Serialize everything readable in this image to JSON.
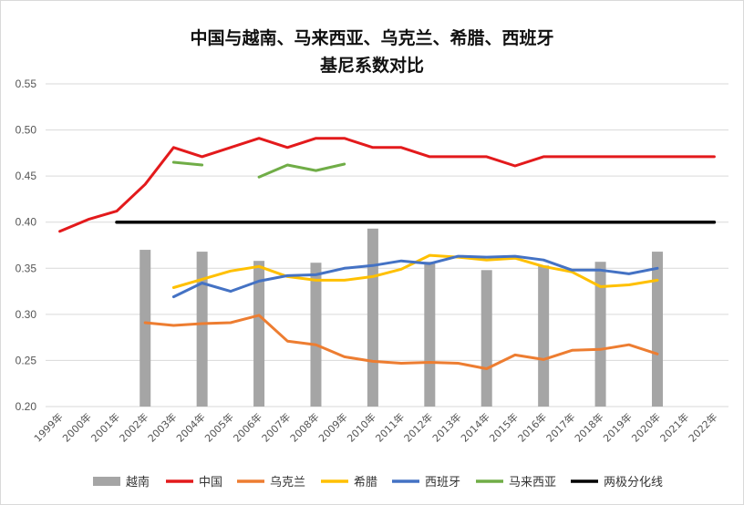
{
  "chart_data": {
    "type": "line",
    "title_lines": [
      "中国与越南、马来西亚、乌克兰、希腊、西班牙",
      "基尼系数对比"
    ],
    "x": [
      "1999年",
      "2000年",
      "2001年",
      "2002年",
      "2003年",
      "2004年",
      "2005年",
      "2006年",
      "2007年",
      "2008年",
      "2009年",
      "2010年",
      "2011年",
      "2012年",
      "2013年",
      "2014年",
      "2015年",
      "2016年",
      "2017年",
      "2018年",
      "2019年",
      "2020年",
      "2021年",
      "2022年"
    ],
    "y_ticks": [
      "0.20",
      "0.25",
      "0.30",
      "0.35",
      "0.40",
      "0.45",
      "0.50",
      "0.55"
    ],
    "ylim": [
      0.2,
      0.55
    ],
    "grid": true,
    "legend_position": "bottom",
    "series": [
      {
        "name": "越南",
        "kind": "bar",
        "color": "#a5a5a5",
        "values": [
          null,
          null,
          null,
          0.37,
          null,
          0.368,
          null,
          0.358,
          null,
          0.356,
          null,
          0.393,
          null,
          0.357,
          null,
          0.348,
          null,
          0.353,
          null,
          0.357,
          null,
          0.368,
          null,
          null
        ]
      },
      {
        "name": "中国",
        "kind": "line",
        "color": "#e31a1c",
        "values": [
          0.39,
          0.403,
          0.412,
          0.441,
          0.481,
          0.471,
          0.481,
          0.491,
          0.481,
          0.491,
          0.491,
          0.481,
          0.481,
          0.471,
          0.471,
          0.471,
          0.461,
          0.471,
          0.471,
          0.471,
          0.471,
          0.471,
          0.471,
          0.471
        ]
      },
      {
        "name": "乌克兰",
        "kind": "line",
        "color": "#ed7d31",
        "values": [
          null,
          null,
          null,
          0.291,
          0.288,
          0.29,
          0.291,
          0.299,
          0.271,
          0.267,
          0.254,
          0.249,
          0.247,
          0.248,
          0.247,
          0.241,
          0.256,
          0.251,
          0.261,
          0.262,
          0.267,
          0.257,
          null,
          null
        ]
      },
      {
        "name": "希腊",
        "kind": "line",
        "color": "#ffc000",
        "values": [
          null,
          null,
          null,
          null,
          0.329,
          0.338,
          0.347,
          0.352,
          0.341,
          0.337,
          0.337,
          0.341,
          0.349,
          0.364,
          0.362,
          0.359,
          0.361,
          0.352,
          0.346,
          0.33,
          0.332,
          0.337,
          null,
          null
        ]
      },
      {
        "name": "西班牙",
        "kind": "line",
        "color": "#4472c4",
        "values": [
          null,
          null,
          null,
          null,
          0.319,
          0.334,
          0.325,
          0.336,
          0.342,
          0.343,
          0.35,
          0.353,
          0.358,
          0.355,
          0.363,
          0.362,
          0.363,
          0.359,
          0.348,
          0.348,
          0.344,
          0.35,
          null,
          null
        ]
      },
      {
        "name": "马来西亚",
        "kind": "line",
        "color": "#70ad47",
        "values": [
          null,
          null,
          null,
          null,
          0.465,
          0.462,
          null,
          0.449,
          0.462,
          0.456,
          0.463,
          null,
          null,
          null,
          null,
          null,
          null,
          null,
          null,
          null,
          null,
          null,
          null,
          null
        ]
      },
      {
        "name": "两极分化线",
        "kind": "line",
        "color": "#000000",
        "values": [
          null,
          null,
          0.4,
          0.4,
          0.4,
          0.4,
          0.4,
          0.4,
          0.4,
          0.4,
          0.4,
          0.4,
          0.4,
          0.4,
          0.4,
          0.4,
          0.4,
          0.4,
          0.4,
          0.4,
          0.4,
          0.4,
          0.4,
          0.4
        ]
      }
    ]
  }
}
